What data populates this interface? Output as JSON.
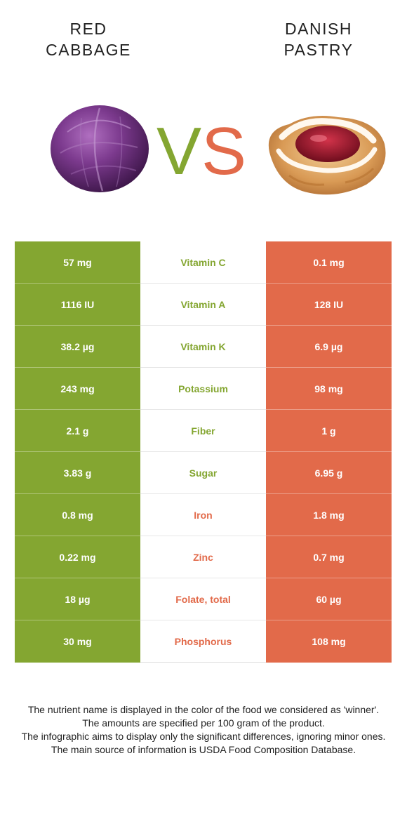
{
  "colors": {
    "winner_left": "#84a631",
    "winner_right": "#e26a4a",
    "vs_v": "#84a631",
    "vs_s": "#e26a4a"
  },
  "foods": {
    "left": {
      "title": "RED\nCABBAGE",
      "image": "red-cabbage-image"
    },
    "right": {
      "title": "DANISH\nPASTRY",
      "image": "danish-pastry-image"
    }
  },
  "vs": {
    "v": "V",
    "s": "S"
  },
  "nutrients": [
    {
      "name": "Vitamin C",
      "left": "57 mg",
      "right": "0.1 mg",
      "winner": "left"
    },
    {
      "name": "Vitamin A",
      "left": "1116 IU",
      "right": "128 IU",
      "winner": "left"
    },
    {
      "name": "Vitamin K",
      "left": "38.2 µg",
      "right": "6.9 µg",
      "winner": "left"
    },
    {
      "name": "Potassium",
      "left": "243 mg",
      "right": "98 mg",
      "winner": "left"
    },
    {
      "name": "Fiber",
      "left": "2.1 g",
      "right": "1 g",
      "winner": "left"
    },
    {
      "name": "Sugar",
      "left": "3.83 g",
      "right": "6.95 g",
      "winner": "left"
    },
    {
      "name": "Iron",
      "left": "0.8 mg",
      "right": "1.8 mg",
      "winner": "right"
    },
    {
      "name": "Zinc",
      "left": "0.22 mg",
      "right": "0.7 mg",
      "winner": "right"
    },
    {
      "name": "Folate, total",
      "left": "18 µg",
      "right": "60 µg",
      "winner": "right"
    },
    {
      "name": "Phosphorus",
      "left": "30 mg",
      "right": "108 mg",
      "winner": "right"
    }
  ],
  "footnote": [
    "The nutrient name is displayed in the color of the food we considered as 'winner'.",
    "The amounts are specified per 100 gram of the product.",
    "The infographic aims to display only the significant differences, ignoring minor ones.",
    "The main source of information is USDA Food Composition Database."
  ]
}
